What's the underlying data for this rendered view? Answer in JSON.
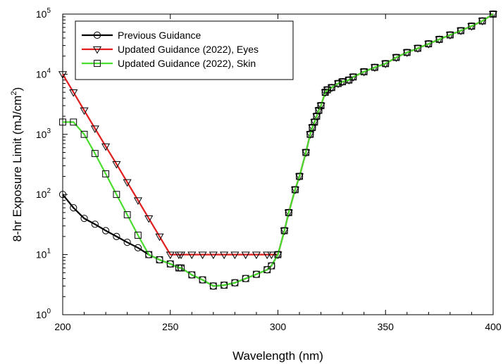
{
  "chart_data": {
    "type": "line",
    "xlabel": "Wavelength (nm)",
    "ylabel_main": "8-hr Exposure Limit (mJ/cm",
    "ylabel_sup": "2",
    "ylabel_tail": ")",
    "y_scale": "log",
    "xlim": [
      200,
      400
    ],
    "ylim": [
      1,
      100000
    ],
    "x_ticks": [
      200,
      250,
      300,
      350,
      400
    ],
    "y_ticks": [
      {
        "value": 1,
        "base": "10",
        "exp": "0"
      },
      {
        "value": 10,
        "base": "10",
        "exp": "1"
      },
      {
        "value": 100,
        "base": "10",
        "exp": "2"
      },
      {
        "value": 1000,
        "base": "10",
        "exp": "3"
      },
      {
        "value": 10000,
        "base": "10",
        "exp": "4"
      },
      {
        "value": 100000,
        "base": "10",
        "exp": "5"
      }
    ],
    "grid": false,
    "legend_position": "top-left",
    "series": [
      {
        "name": "Previous Guidance",
        "color": "#000000",
        "marker": "circle",
        "x": [
          200,
          205,
          210,
          215,
          220,
          225,
          230,
          235,
          240,
          245,
          250,
          254,
          255,
          260,
          265,
          270,
          275,
          280,
          285,
          290,
          295,
          297,
          300,
          303,
          305,
          308,
          310,
          313,
          315,
          316,
          317,
          318,
          319,
          320,
          322,
          323,
          325,
          328,
          330,
          333,
          335,
          340,
          345,
          350,
          355,
          360,
          365,
          370,
          375,
          380,
          385,
          390,
          395,
          400
        ],
        "y": [
          100,
          60,
          40,
          32,
          25,
          20,
          16,
          13,
          10,
          8.2,
          7,
          6.0,
          6.0,
          4.6,
          3.8,
          3.0,
          3.1,
          3.4,
          4.0,
          4.7,
          5.6,
          6.5,
          10,
          25,
          50,
          120,
          200,
          500,
          1000,
          1300,
          1600,
          2000,
          2500,
          3000,
          5000,
          5500,
          6000,
          7000,
          7500,
          8000,
          9000,
          11000,
          13000,
          15000,
          19000,
          23000,
          27000,
          32000,
          38000,
          45000,
          53000,
          63000,
          77000,
          100000
        ]
      },
      {
        "name": "Updated Guidance (2022), Eyes",
        "color": "#e11e1e",
        "marker": "triangle-down",
        "x": [
          200,
          205,
          210,
          215,
          220,
          225,
          230,
          235,
          240,
          245,
          250,
          254,
          255,
          260,
          265,
          270,
          275,
          280,
          285,
          290,
          295,
          297,
          300,
          303,
          305,
          308,
          310,
          313,
          315,
          316,
          317,
          318,
          319,
          320,
          322,
          323,
          325,
          328,
          330,
          333,
          335,
          340,
          345,
          350,
          355,
          360,
          365,
          370,
          375,
          380,
          385,
          390,
          395,
          400
        ],
        "y": [
          10000,
          5000,
          2500,
          1250,
          630,
          320,
          160,
          80,
          40,
          20,
          10,
          10,
          10,
          10,
          10,
          10,
          10,
          10,
          10,
          10,
          10,
          10,
          10,
          25,
          50,
          120,
          200,
          500,
          1000,
          1300,
          1600,
          2000,
          2500,
          3000,
          5000,
          5500,
          6000,
          7000,
          7500,
          8000,
          9000,
          11000,
          13000,
          15000,
          19000,
          23000,
          27000,
          32000,
          38000,
          45000,
          53000,
          63000,
          77000,
          100000
        ]
      },
      {
        "name": "Updated Guidance (2022), Skin",
        "color": "#49dd2e",
        "marker": "square",
        "x": [
          200,
          205,
          210,
          215,
          220,
          225,
          230,
          235,
          240,
          245,
          250,
          254,
          255,
          260,
          265,
          270,
          275,
          280,
          285,
          290,
          295,
          297,
          300,
          303,
          305,
          308,
          310,
          313,
          315,
          316,
          317,
          318,
          319,
          320,
          322,
          323,
          325,
          328,
          330,
          333,
          335,
          340,
          345,
          350,
          355,
          360,
          365,
          370,
          375,
          380,
          385,
          390,
          395,
          400
        ],
        "y": [
          1600,
          1600,
          1000,
          480,
          220,
          100,
          46,
          21,
          10,
          8.2,
          7,
          6.0,
          6.0,
          4.6,
          3.8,
          3.0,
          3.1,
          3.4,
          4.0,
          4.7,
          5.6,
          6.5,
          10,
          25,
          50,
          120,
          200,
          500,
          1000,
          1300,
          1600,
          2000,
          2500,
          3000,
          5000,
          5500,
          6000,
          7000,
          7500,
          8000,
          9000,
          11000,
          13000,
          15000,
          19000,
          23000,
          27000,
          32000,
          38000,
          45000,
          53000,
          63000,
          77000,
          100000
        ]
      }
    ]
  }
}
